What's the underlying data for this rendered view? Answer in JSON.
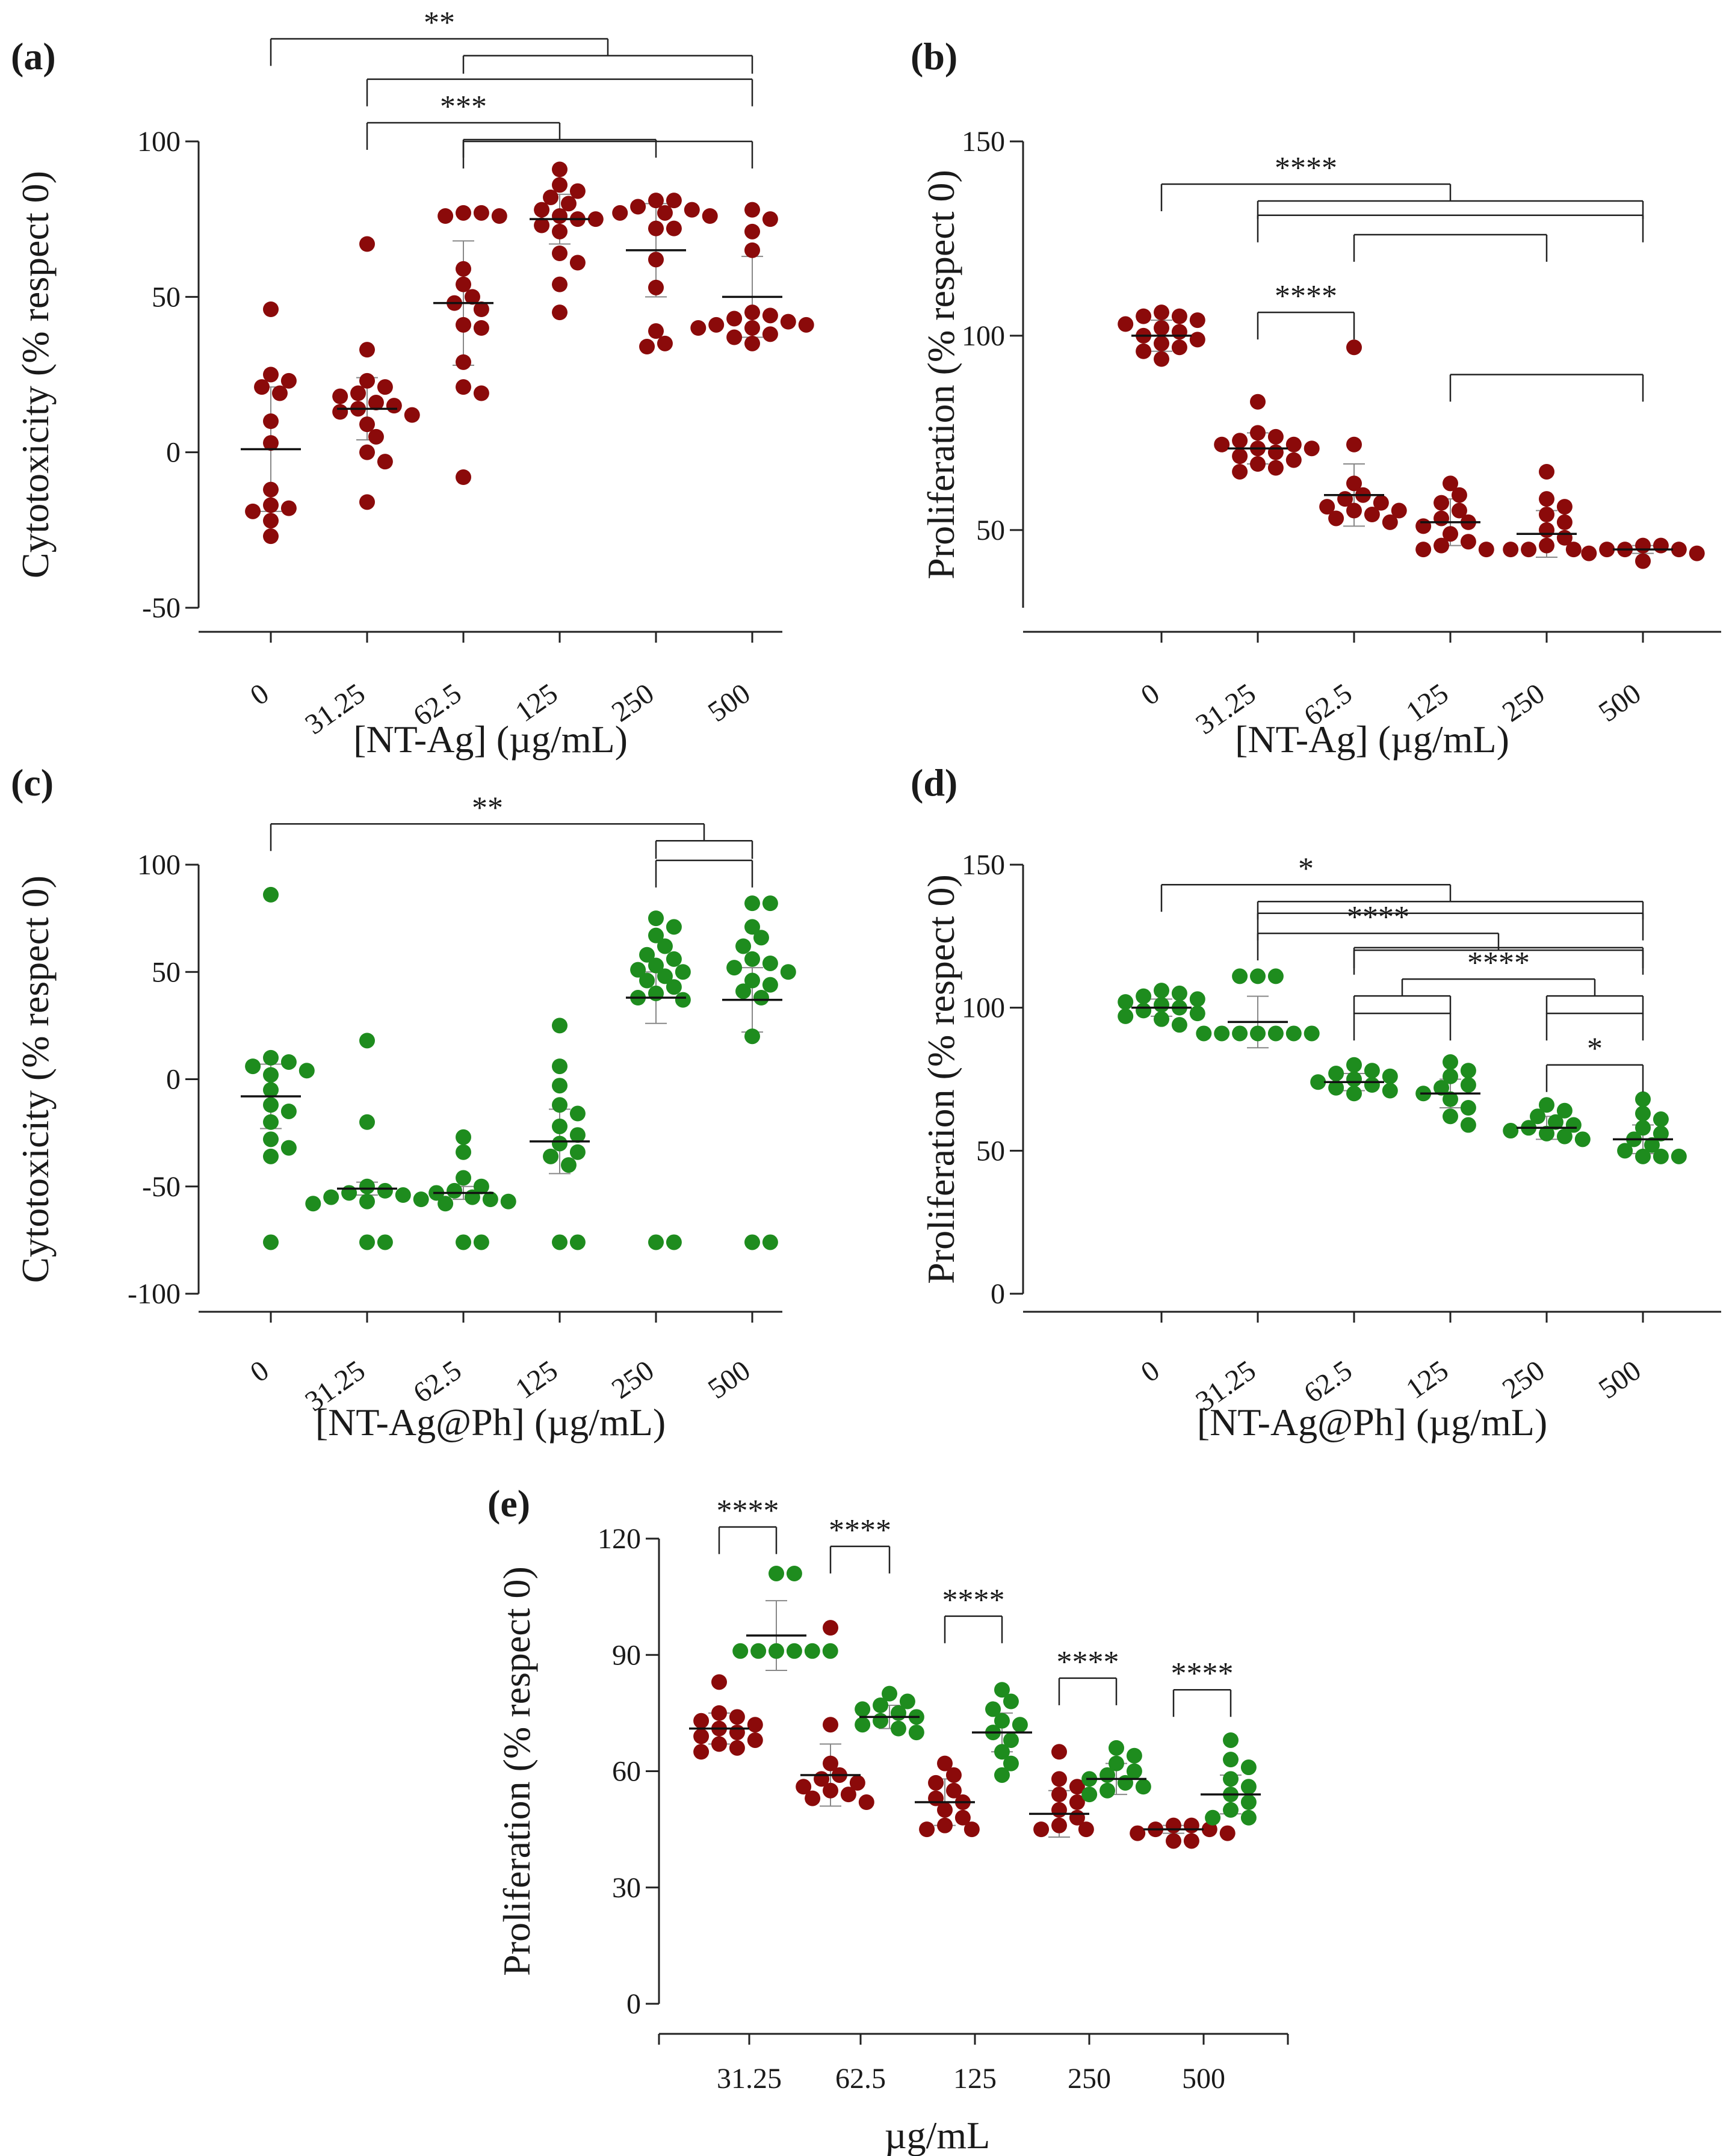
{
  "colors": {
    "red": "#8b0a0a",
    "green": "#1e8c1e",
    "axis": "#222222"
  },
  "chart_data": [
    {
      "id": "a",
      "panel_label": "(a)",
      "type": "scatter",
      "xlabel": "[NT-Ag] (µg/mL)",
      "ylabel": "Cytotoxicity (% respect 0)",
      "ylim": [
        -50,
        100
      ],
      "yticks": [
        -50,
        0,
        50,
        100
      ],
      "categories": [
        "0",
        "31.25",
        "62.5",
        "125",
        "250",
        "500"
      ],
      "series": [
        {
          "name": "NT-Ag",
          "color": "red",
          "groups": [
            {
              "mean": 1,
              "sd": 20,
              "points": [
                46,
                25,
                23,
                21,
                19,
                10,
                3,
                -12,
                -17,
                -18,
                -19,
                -22,
                -27
              ]
            },
            {
              "mean": 14,
              "sd": 10,
              "points": [
                67,
                33,
                23,
                21,
                19,
                18,
                16,
                15,
                14,
                13,
                12,
                9,
                5,
                0,
                -3,
                -16
              ]
            },
            {
              "mean": 48,
              "sd": 20,
              "points": [
                77,
                77,
                76,
                76,
                59,
                54,
                50,
                48,
                46,
                41,
                40,
                29,
                21,
                19,
                -8
              ]
            },
            {
              "mean": 75,
              "sd": 8,
              "points": [
                91,
                86,
                84,
                82,
                80,
                78,
                76,
                75,
                75,
                73,
                71,
                64,
                61,
                54,
                45
              ]
            },
            {
              "mean": 65,
              "sd": 15,
              "points": [
                81,
                81,
                79,
                78,
                77,
                77,
                76,
                72,
                72,
                62,
                53,
                39,
                35,
                34
              ]
            },
            {
              "mean": 50,
              "sd": 13,
              "points": [
                78,
                75,
                71,
                65,
                45,
                44,
                43,
                42,
                41,
                41,
                40,
                40,
                38,
                37,
                35
              ]
            }
          ]
        }
      ],
      "brackets": [
        {
          "label": "**",
          "y": 133,
          "left": [
            0
          ],
          "right": [
            2,
            5
          ]
        },
        {
          "label": "",
          "y": 120,
          "left": [
            1
          ],
          "right": [
            5
          ]
        },
        {
          "label": "***",
          "y": 106,
          "left": [
            1
          ],
          "right": [
            2,
            4
          ]
        },
        {
          "label": "",
          "y": 100,
          "left": [
            2
          ],
          "right": [
            5
          ]
        }
      ]
    },
    {
      "id": "b",
      "panel_label": "(b)",
      "type": "scatter",
      "xlabel": "[NT-Ag] (µg/mL)",
      "ylabel": "Proliferation (% respect 0)",
      "ylim": [
        30,
        150
      ],
      "yticks": [
        50,
        100,
        150
      ],
      "categories": [
        "0",
        "31.25",
        "62.5",
        "125",
        "250",
        "500"
      ],
      "series": [
        {
          "name": "NT-Ag",
          "color": "red",
          "groups": [
            {
              "mean": 100,
              "sd": 4,
              "points": [
                106,
                105,
                105,
                104,
                103,
                102,
                101,
                100,
                99,
                98,
                97,
                96,
                94
              ]
            },
            {
              "mean": 71,
              "sd": 4,
              "points": [
                83,
                75,
                74,
                73,
                72,
                72,
                71,
                71,
                70,
                69,
                68,
                67,
                66,
                65
              ]
            },
            {
              "mean": 59,
              "sd": 8,
              "points": [
                97,
                72,
                62,
                59,
                58,
                57,
                56,
                55,
                55,
                54,
                53,
                52
              ]
            },
            {
              "mean": 52,
              "sd": 6,
              "points": [
                62,
                59,
                57,
                55,
                53,
                52,
                51,
                49,
                47,
                46,
                45,
                45
              ]
            },
            {
              "mean": 49,
              "sd": 6,
              "points": [
                65,
                58,
                56,
                54,
                52,
                50,
                48,
                46,
                45,
                45,
                45
              ]
            },
            {
              "mean": 45,
              "sd": 1,
              "points": [
                46,
                46,
                45,
                45,
                45,
                44,
                44,
                42
              ]
            }
          ]
        }
      ],
      "brackets": [
        {
          "label": "****",
          "y": 139,
          "left": [
            0
          ],
          "right": [
            1,
            5
          ]
        },
        {
          "label": "",
          "y": 131,
          "left": [
            1
          ],
          "right": [
            5
          ]
        },
        {
          "label": "****",
          "y": 106,
          "left": [
            1
          ],
          "right": [
            2
          ]
        },
        {
          "label": "",
          "y": 126,
          "left": [
            2
          ],
          "right": [
            4
          ]
        },
        {
          "label": "",
          "y": 90,
          "left": [
            3
          ],
          "right": [
            5
          ]
        }
      ]
    },
    {
      "id": "c",
      "panel_label": "(c)",
      "type": "scatter",
      "xlabel": "[NT-Ag@Ph] (µg/mL)",
      "ylabel": "Cytotoxicity (% respect 0)",
      "ylim": [
        -100,
        100
      ],
      "yticks": [
        -100,
        -50,
        0,
        50,
        100
      ],
      "categories": [
        "0",
        "31.25",
        "62.5",
        "125",
        "250",
        "500"
      ],
      "series": [
        {
          "name": "NT-Ag@Ph",
          "color": "green",
          "groups": [
            {
              "mean": -8,
              "sd": 15,
              "points": [
                86,
                10,
                8,
                6,
                4,
                2,
                -5,
                -12,
                -15,
                -20,
                -28,
                -32,
                -36,
                -76
              ]
            },
            {
              "mean": -51,
              "sd": 3,
              "points": [
                18,
                -20,
                -50,
                -52,
                -53,
                -54,
                -55,
                -56,
                -57,
                -58,
                -76,
                -76
              ]
            },
            {
              "mean": -53,
              "sd": 3,
              "points": [
                -27,
                -34,
                -46,
                -50,
                -52,
                -53,
                -55,
                -56,
                -57,
                -58,
                -76,
                -76
              ]
            },
            {
              "mean": -29,
              "sd": 15,
              "points": [
                25,
                6,
                -3,
                -12,
                -16,
                -22,
                -26,
                -30,
                -34,
                -36,
                -40,
                -76,
                -76
              ]
            },
            {
              "mean": 38,
              "sd": 12,
              "points": [
                75,
                71,
                67,
                62,
                58,
                56,
                53,
                51,
                50,
                48,
                46,
                43,
                40,
                38,
                37,
                -76,
                -76
              ]
            },
            {
              "mean": 37,
              "sd": 15,
              "points": [
                82,
                82,
                71,
                66,
                62,
                56,
                54,
                52,
                50,
                46,
                44,
                41,
                38,
                20,
                -76,
                -76
              ]
            }
          ]
        }
      ],
      "brackets": [
        {
          "label": "**",
          "y": 119,
          "left": [
            0
          ],
          "right": [
            4,
            5
          ]
        },
        {
          "label": "",
          "y": 102,
          "left": [
            4
          ],
          "right": [
            5
          ]
        }
      ]
    },
    {
      "id": "d",
      "panel_label": "(d)",
      "type": "scatter",
      "xlabel": "[NT-Ag@Ph] (µg/mL)",
      "ylabel": "Proliferation (% respect 0)",
      "ylim": [
        0,
        150
      ],
      "yticks": [
        0,
        50,
        100,
        150
      ],
      "categories": [
        "0",
        "31.25",
        "62.5",
        "125",
        "250",
        "500"
      ],
      "series": [
        {
          "name": "NT-Ag@Ph",
          "color": "green",
          "groups": [
            {
              "mean": 100,
              "sd": 3,
              "points": [
                106,
                105,
                104,
                103,
                102,
                101,
                100,
                99,
                98,
                97,
                96,
                94
              ]
            },
            {
              "mean": 95,
              "sd": 9,
              "points": [
                111,
                111,
                111,
                91,
                91,
                91,
                91,
                91,
                91,
                91
              ]
            },
            {
              "mean": 74,
              "sd": 3,
              "points": [
                80,
                78,
                77,
                76,
                75,
                74,
                73,
                72,
                71,
                70
              ]
            },
            {
              "mean": 70,
              "sd": 5,
              "points": [
                81,
                78,
                76,
                73,
                72,
                70,
                68,
                65,
                62,
                59
              ]
            },
            {
              "mean": 58,
              "sd": 4,
              "points": [
                66,
                64,
                62,
                60,
                59,
                58,
                57,
                56,
                55,
                54
              ]
            },
            {
              "mean": 54,
              "sd": 5,
              "points": [
                68,
                63,
                61,
                58,
                56,
                54,
                52,
                50,
                48,
                48,
                48
              ]
            }
          ]
        }
      ],
      "brackets": [
        {
          "label": "*",
          "y": 143,
          "left": [
            0
          ],
          "right": [
            1,
            5
          ]
        },
        {
          "label": "",
          "y": 133,
          "left": [
            1
          ],
          "right": [
            5
          ]
        },
        {
          "label": "****",
          "y": 126,
          "left": [
            1
          ],
          "right": [
            2,
            5
          ]
        },
        {
          "label": "",
          "y": 121,
          "left": [
            2
          ],
          "right": [
            5
          ]
        },
        {
          "label": "****",
          "y": 110,
          "left": [
            2,
            3
          ],
          "right": [
            4,
            5
          ]
        },
        {
          "label": "",
          "y": 98,
          "left": [
            2
          ],
          "right": [
            3
          ]
        },
        {
          "label": "",
          "y": 98,
          "left": [
            4
          ],
          "right": [
            5
          ]
        },
        {
          "label": "*",
          "y": 80,
          "left": [
            4
          ],
          "right": [
            5
          ]
        }
      ]
    },
    {
      "id": "e",
      "panel_label": "(e)",
      "type": "scatter",
      "xlabel": "µg/mL",
      "ylabel": "Proliferation (% respect 0)",
      "ylim": [
        0,
        120
      ],
      "yticks": [
        0,
        30,
        60,
        90,
        120
      ],
      "categories": [
        "31.25",
        "62.5",
        "125",
        "250",
        "500"
      ],
      "series": [
        {
          "name": "NT-Ag",
          "color": "red",
          "groups": [
            {
              "mean": 71,
              "sd": 4,
              "points": [
                83,
                75,
                74,
                73,
                72,
                71,
                70,
                69,
                68,
                67,
                66,
                65
              ]
            },
            {
              "mean": 59,
              "sd": 8,
              "points": [
                97,
                72,
                62,
                59,
                58,
                57,
                56,
                55,
                54,
                53,
                52
              ]
            },
            {
              "mean": 52,
              "sd": 6,
              "points": [
                62,
                59,
                57,
                55,
                53,
                52,
                50,
                48,
                46,
                45,
                45
              ]
            },
            {
              "mean": 49,
              "sd": 6,
              "points": [
                65,
                58,
                56,
                54,
                52,
                50,
                48,
                46,
                45,
                45
              ]
            },
            {
              "mean": 45,
              "sd": 1,
              "points": [
                46,
                46,
                45,
                45,
                44,
                44,
                42,
                42
              ]
            }
          ]
        },
        {
          "name": "NT-Ag@Ph",
          "color": "green",
          "groups": [
            {
              "mean": 95,
              "sd": 9,
              "points": [
                111,
                111,
                91,
                91,
                91,
                91,
                91,
                91
              ]
            },
            {
              "mean": 74,
              "sd": 3,
              "points": [
                80,
                78,
                77,
                76,
                75,
                74,
                73,
                72,
                71,
                70
              ]
            },
            {
              "mean": 70,
              "sd": 5,
              "points": [
                81,
                78,
                76,
                73,
                72,
                70,
                68,
                65,
                62,
                59
              ]
            },
            {
              "mean": 58,
              "sd": 4,
              "points": [
                66,
                64,
                62,
                60,
                59,
                58,
                57,
                56,
                55,
                54
              ]
            },
            {
              "mean": 54,
              "sd": 5,
              "points": [
                68,
                63,
                61,
                58,
                56,
                54,
                52,
                50,
                48,
                48
              ]
            }
          ]
        }
      ],
      "brackets": [
        {
          "label": "****",
          "y": 123,
          "left": [
            0
          ],
          "right": [
            1
          ]
        },
        {
          "label": "****",
          "y": 118,
          "left": [
            2
          ],
          "right": [
            3
          ]
        },
        {
          "label": "****",
          "y": 100,
          "left": [
            4
          ],
          "right": [
            5
          ]
        },
        {
          "label": "****",
          "y": 84,
          "left": [
            6
          ],
          "right": [
            7
          ]
        },
        {
          "label": "****",
          "y": 81,
          "left": [
            8
          ],
          "right": [
            9
          ]
        }
      ]
    }
  ]
}
